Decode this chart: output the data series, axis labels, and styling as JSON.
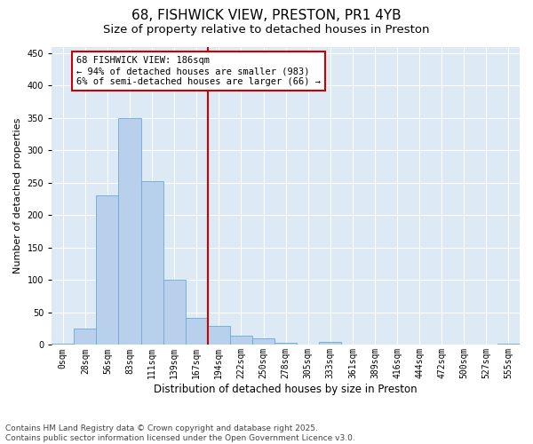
{
  "title": "68, FISHWICK VIEW, PRESTON, PR1 4YB",
  "subtitle": "Size of property relative to detached houses in Preston",
  "xlabel": "Distribution of detached houses by size in Preston",
  "ylabel": "Number of detached properties",
  "bin_labels": [
    "0sqm",
    "28sqm",
    "56sqm",
    "83sqm",
    "111sqm",
    "139sqm",
    "167sqm",
    "194sqm",
    "222sqm",
    "250sqm",
    "278sqm",
    "305sqm",
    "333sqm",
    "361sqm",
    "389sqm",
    "416sqm",
    "444sqm",
    "472sqm",
    "500sqm",
    "527sqm",
    "555sqm"
  ],
  "bar_heights": [
    2,
    25,
    230,
    350,
    252,
    101,
    41,
    29,
    14,
    10,
    3,
    0,
    4,
    0,
    0,
    0,
    0,
    0,
    0,
    0,
    2
  ],
  "bar_color": "#b8d0eb",
  "bar_edge_color": "#6aaad4",
  "vline_x": 7,
  "vline_color": "#cc0000",
  "annotation_text": "68 FISHWICK VIEW: 186sqm\n← 94% of detached houses are smaller (983)\n6% of semi-detached houses are larger (66) →",
  "annotation_box_color": "#ffffff",
  "annotation_box_edge": "#cc0000",
  "ylim": [
    0,
    460
  ],
  "yticks": [
    0,
    50,
    100,
    150,
    200,
    250,
    300,
    350,
    400,
    450
  ],
  "background_color": "#dde9f5",
  "footer_line1": "Contains HM Land Registry data © Crown copyright and database right 2025.",
  "footer_line2": "Contains public sector information licensed under the Open Government Licence v3.0.",
  "title_fontsize": 11,
  "subtitle_fontsize": 9.5,
  "xlabel_fontsize": 8.5,
  "ylabel_fontsize": 8,
  "tick_fontsize": 7,
  "annotation_fontsize": 7.5,
  "footer_fontsize": 6.5
}
